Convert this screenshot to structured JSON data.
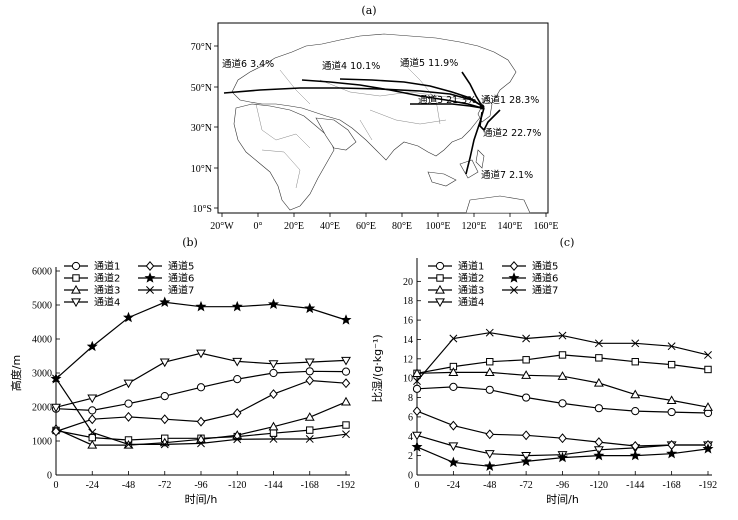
{
  "figure": {
    "label_a": "(a)",
    "label_b": "(b)",
    "label_c": "(c)"
  },
  "map": {
    "lon_ticks": [
      "20°W",
      "0°",
      "20°E",
      "40°E",
      "60°E",
      "80°E",
      "100°E",
      "120°E",
      "140°E",
      "160°E"
    ],
    "lat_ticks": [
      "70°N",
      "50°N",
      "30°N",
      "10°N",
      "10°S"
    ],
    "channels": [
      {
        "text": "通道6  3.4%"
      },
      {
        "text": "通道4  10.1%"
      },
      {
        "text": "通道5  11.9%"
      },
      {
        "text": "通道3 21.3%"
      },
      {
        "text": "通道1 28.3%"
      },
      {
        "text": "通道2  22.7%"
      },
      {
        "text": "通道7  2.1%"
      }
    ]
  },
  "chart_data": [
    {
      "type": "line",
      "x": [
        0,
        -24,
        -48,
        -72,
        -96,
        -120,
        -144,
        -168,
        -192
      ],
      "xlabel": "时间/h",
      "ylabel": "高度/m",
      "ylim": [
        0,
        6000
      ],
      "yticks": [
        0,
        1000,
        2000,
        3000,
        4000,
        5000,
        6000
      ],
      "legend_position": "top-left",
      "series": [
        {
          "name": "通道1",
          "marker": "circle",
          "values": [
            1950,
            1900,
            2100,
            2320,
            2580,
            2820,
            3000,
            3050,
            3040
          ]
        },
        {
          "name": "通道2",
          "marker": "square",
          "values": [
            1310,
            1100,
            1030,
            1080,
            1080,
            1130,
            1230,
            1320,
            1470
          ]
        },
        {
          "name": "通道3",
          "marker": "triangle-up",
          "values": [
            1360,
            880,
            880,
            950,
            1050,
            1170,
            1420,
            1700,
            2150
          ]
        },
        {
          "name": "通道4",
          "marker": "triangle-down",
          "values": [
            1990,
            2260,
            2700,
            3320,
            3580,
            3340,
            3270,
            3320,
            3370
          ]
        },
        {
          "name": "通道5",
          "marker": "diamond",
          "values": [
            1280,
            1640,
            1710,
            1640,
            1570,
            1820,
            2380,
            2780,
            2700
          ]
        },
        {
          "name": "通道6",
          "marker": "star",
          "values": [
            2830,
            3780,
            4630,
            5080,
            4950,
            4950,
            5020,
            4900,
            4560
          ]
        },
        {
          "name": "通道7",
          "marker": "x",
          "values": [
            2840,
            1250,
            900,
            900,
            930,
            1050,
            1060,
            1060,
            1200
          ]
        }
      ]
    },
    {
      "type": "line",
      "x": [
        0,
        -24,
        -48,
        -72,
        -96,
        -120,
        -144,
        -168,
        -192
      ],
      "xlabel": "时间/h",
      "ylabel": "比湿/(g·kg⁻¹)",
      "ylim": [
        0,
        22
      ],
      "yticks": [
        0,
        2,
        4,
        6,
        8,
        10,
        12,
        14,
        16,
        18,
        20
      ],
      "legend_position": "top-left",
      "series": [
        {
          "name": "通道1",
          "marker": "circle",
          "values": [
            8.9,
            9.1,
            8.8,
            8.0,
            7.4,
            6.9,
            6.6,
            6.5,
            6.4
          ]
        },
        {
          "name": "通道2",
          "marker": "square",
          "values": [
            10.5,
            11.2,
            11.7,
            11.9,
            12.4,
            12.1,
            11.7,
            11.4,
            10.9
          ]
        },
        {
          "name": "通道3",
          "marker": "triangle-up",
          "values": [
            10.5,
            10.6,
            10.6,
            10.3,
            10.2,
            9.5,
            8.3,
            7.7,
            7.0
          ]
        },
        {
          "name": "通道4",
          "marker": "triangle-down",
          "values": [
            4.1,
            3.0,
            2.2,
            2.0,
            2.1,
            2.6,
            2.8,
            3.1,
            3.1
          ]
        },
        {
          "name": "通道5",
          "marker": "diamond",
          "values": [
            6.6,
            5.1,
            4.2,
            4.1,
            3.8,
            3.4,
            3.0,
            3.1,
            3.1
          ]
        },
        {
          "name": "通道6",
          "marker": "star",
          "values": [
            2.9,
            1.3,
            0.9,
            1.4,
            1.8,
            2.0,
            2.0,
            2.2,
            2.7
          ]
        },
        {
          "name": "通道7",
          "marker": "x",
          "values": [
            9.7,
            14.1,
            14.7,
            14.1,
            14.4,
            13.6,
            13.6,
            13.3,
            12.4
          ]
        }
      ]
    }
  ]
}
